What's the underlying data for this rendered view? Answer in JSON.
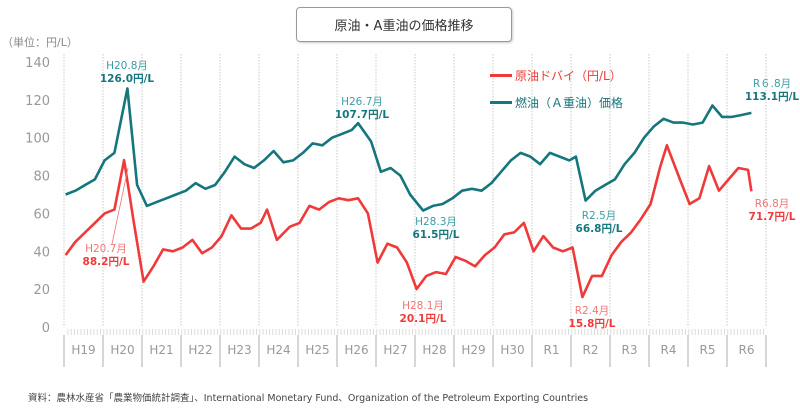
{
  "chart_data": {
    "type": "line",
    "title": "原油・A重油の価格推移",
    "unit_label": "（単位：円/L）",
    "source": "資料：農林水産省「農業物価統計調査」、International Monetary Fund、Organization of the Petroleum Exporting Countries",
    "ylim": [
      0,
      140
    ],
    "yticks": [
      "0",
      "20",
      "40",
      "60",
      "80",
      "100",
      "120",
      "140"
    ],
    "categories": [
      "H19",
      "H20",
      "H21",
      "H22",
      "H23",
      "H24",
      "H25",
      "H26",
      "H27",
      "H28",
      "H29",
      "H30",
      "R1",
      "R2",
      "R3",
      "R4",
      "R5",
      "R6"
    ],
    "grid": "vertical dotted at year boundaries",
    "legend_position": "top-right",
    "colors": {
      "crude": "#f03a3a",
      "fuel": "#15767d"
    },
    "series": [
      {
        "name": "原油ドバイ（円/L）",
        "key": "crude",
        "points": [
          [
            "H19.1",
            38
          ],
          [
            "H19.4",
            45
          ],
          [
            "H19.7",
            50
          ],
          [
            "H19.10",
            55
          ],
          [
            "H20.1",
            60
          ],
          [
            "H20.4",
            62
          ],
          [
            "H20.7",
            88.2
          ],
          [
            "H20.10",
            55
          ],
          [
            "H21.1",
            24
          ],
          [
            "H21.4",
            32
          ],
          [
            "H21.7",
            41
          ],
          [
            "H21.10",
            40
          ],
          [
            "H22.1",
            42
          ],
          [
            "H22.4",
            46
          ],
          [
            "H22.7",
            39
          ],
          [
            "H22.10",
            42
          ],
          [
            "H23.1",
            48
          ],
          [
            "H23.4",
            59
          ],
          [
            "H23.7",
            52
          ],
          [
            "H23.10",
            52
          ],
          [
            "H24.1",
            55
          ],
          [
            "H24.3",
            62
          ],
          [
            "H24.6",
            46
          ],
          [
            "H24.10",
            53
          ],
          [
            "H25.1",
            55
          ],
          [
            "H25.4",
            64
          ],
          [
            "H25.7",
            62
          ],
          [
            "H25.10",
            66
          ],
          [
            "H26.1",
            68
          ],
          [
            "H26.4",
            67
          ],
          [
            "H26.7",
            68
          ],
          [
            "H26.10",
            60
          ],
          [
            "H27.1",
            34
          ],
          [
            "H27.4",
            44
          ],
          [
            "H27.7",
            42
          ],
          [
            "H27.10",
            34
          ],
          [
            "H28.1",
            20.1
          ],
          [
            "H28.4",
            27
          ],
          [
            "H28.7",
            29
          ],
          [
            "H28.10",
            28
          ],
          [
            "H29.1",
            37
          ],
          [
            "H29.4",
            35
          ],
          [
            "H29.7",
            32
          ],
          [
            "H29.10",
            38
          ],
          [
            "H30.1",
            42
          ],
          [
            "H30.4",
            49
          ],
          [
            "H30.7",
            50
          ],
          [
            "H30.10",
            55
          ],
          [
            "R1.1",
            40
          ],
          [
            "R1.4",
            48
          ],
          [
            "R1.7",
            42
          ],
          [
            "R1.10",
            40
          ],
          [
            "R2.1",
            42
          ],
          [
            "R2.4",
            15.8
          ],
          [
            "R2.7",
            27
          ],
          [
            "R2.10",
            27
          ],
          [
            "R3.1",
            38
          ],
          [
            "R3.4",
            45
          ],
          [
            "R3.7",
            50
          ],
          [
            "R3.10",
            57
          ],
          [
            "R4.1",
            65
          ],
          [
            "R4.4",
            85
          ],
          [
            "R4.6",
            96
          ],
          [
            "R4.10",
            78
          ],
          [
            "R5.1",
            65
          ],
          [
            "R5.4",
            68
          ],
          [
            "R5.7",
            85
          ],
          [
            "R5.10",
            72
          ],
          [
            "R6.1",
            78
          ],
          [
            "R6.4",
            84
          ],
          [
            "R6.7",
            83
          ],
          [
            "R6.8",
            71.7
          ]
        ]
      },
      {
        "name": "燃油（Ａ重油）価格",
        "key": "fuel",
        "points": [
          [
            "H19.1",
            70
          ],
          [
            "H19.4",
            72
          ],
          [
            "H19.7",
            75
          ],
          [
            "H19.10",
            78
          ],
          [
            "H20.1",
            88
          ],
          [
            "H20.4",
            92
          ],
          [
            "H20.8",
            126.0
          ],
          [
            "H20.11",
            75
          ],
          [
            "H21.2",
            64
          ],
          [
            "H21.5",
            66
          ],
          [
            "H21.8",
            68
          ],
          [
            "H21.11",
            70
          ],
          [
            "H22.2",
            72
          ],
          [
            "H22.5",
            76
          ],
          [
            "H22.8",
            73
          ],
          [
            "H22.11",
            75
          ],
          [
            "H23.2",
            82
          ],
          [
            "H23.5",
            90
          ],
          [
            "H23.8",
            86
          ],
          [
            "H23.11",
            84
          ],
          [
            "H24.2",
            88
          ],
          [
            "H24.5",
            93
          ],
          [
            "H24.8",
            87
          ],
          [
            "H24.11",
            88
          ],
          [
            "H25.2",
            92
          ],
          [
            "H25.5",
            97
          ],
          [
            "H25.8",
            96
          ],
          [
            "H25.11",
            100
          ],
          [
            "H26.2",
            102
          ],
          [
            "H26.5",
            104
          ],
          [
            "H26.7",
            107.7
          ],
          [
            "H26.11",
            98
          ],
          [
            "H27.2",
            82
          ],
          [
            "H27.5",
            84
          ],
          [
            "H27.8",
            80
          ],
          [
            "H27.11",
            70
          ],
          [
            "H28.3",
            61.5
          ],
          [
            "H28.6",
            64
          ],
          [
            "H28.9",
            65
          ],
          [
            "H28.12",
            68
          ],
          [
            "H29.3",
            72
          ],
          [
            "H29.6",
            73
          ],
          [
            "H29.9",
            72
          ],
          [
            "H29.12",
            76
          ],
          [
            "H30.3",
            82
          ],
          [
            "H30.6",
            88
          ],
          [
            "H30.9",
            92
          ],
          [
            "H30.12",
            90
          ],
          [
            "R1.3",
            86
          ],
          [
            "R1.6",
            92
          ],
          [
            "R1.9",
            90
          ],
          [
            "R1.12",
            88
          ],
          [
            "R2.2",
            90
          ],
          [
            "R2.5",
            66.8
          ],
          [
            "R2.8",
            72
          ],
          [
            "R2.11",
            75
          ],
          [
            "R3.2",
            78
          ],
          [
            "R3.5",
            86
          ],
          [
            "R3.8",
            92
          ],
          [
            "R3.11",
            100
          ],
          [
            "R4.2",
            106
          ],
          [
            "R4.5",
            110
          ],
          [
            "R4.8",
            108
          ],
          [
            "R4.11",
            108
          ],
          [
            "R5.2",
            107
          ],
          [
            "R5.5",
            108
          ],
          [
            "R5.8",
            117
          ],
          [
            "R5.11",
            111
          ],
          [
            "R6.2",
            111
          ],
          [
            "R6.5",
            112
          ],
          [
            "R6.8",
            113.1
          ]
        ]
      }
    ],
    "annotations": [
      {
        "series": "fuel",
        "month": "H20.8月",
        "value": "126.0円/L"
      },
      {
        "series": "crude",
        "month": "H20.7月",
        "value": "88.2円/L"
      },
      {
        "series": "fuel",
        "month": "H26.7月",
        "value": "107.7円/L"
      },
      {
        "series": "crude",
        "month": "H28.1月",
        "value": "20.1円/L"
      },
      {
        "series": "fuel",
        "month": "H28.3月",
        "value": "61.5円/L"
      },
      {
        "series": "crude",
        "month": "R2.4月",
        "value": "15.8円/L"
      },
      {
        "series": "fuel",
        "month": "R2.5月",
        "value": "66.8円/L"
      },
      {
        "series": "fuel",
        "month": "R６.8月",
        "value": "113.1円/L"
      },
      {
        "series": "crude",
        "month": "R6.8月",
        "value": "71.7円/L"
      }
    ]
  }
}
